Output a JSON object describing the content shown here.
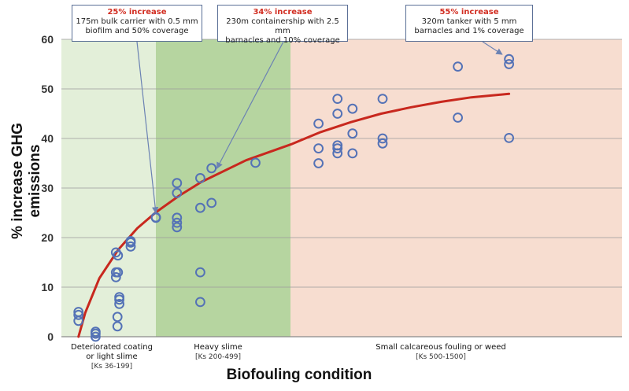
{
  "chart_data": {
    "type": "scatter",
    "title": "",
    "xlabel": "Biofouling condition",
    "ylabel": "% increase GHG emissions",
    "ylim": [
      0,
      60
    ],
    "yticks": [
      0,
      10,
      20,
      30,
      40,
      50,
      60
    ],
    "grid": true,
    "colors": {
      "marker": "#5472b6",
      "trend": "#c8281e",
      "band_light": "#e3efd9",
      "band_medium": "#b6d5a0",
      "band_orange": "#f7ddd0",
      "annotation_title": "#d22d21",
      "arrow": "#6b82b3"
    },
    "categories": [
      {
        "label_line1": "Deteriorated coating",
        "label_line2": "or light slime",
        "range": "[Ks 36-199]"
      },
      {
        "label_line1": "Heavy slime",
        "label_line2": "",
        "range": "[Ks 200-499]"
      },
      {
        "label_line1": "Small calcareous fouling or weed",
        "label_line2": "",
        "range": "[Ks 500-1500]"
      }
    ],
    "x_domain": [
      0,
      1600
    ],
    "bands": [
      {
        "from": 0,
        "to": 199,
        "fill": "band_light"
      },
      {
        "from": 199,
        "to": 499,
        "fill": "band_medium"
      },
      {
        "from": 499,
        "to": 1600,
        "fill": "band_orange"
      }
    ],
    "series": [
      {
        "name": "observations",
        "points": [
          [
            36,
            5.0
          ],
          [
            36,
            4.4
          ],
          [
            36,
            3.2
          ],
          [
            72,
            1.0
          ],
          [
            72,
            0.6
          ],
          [
            72,
            0.0
          ],
          [
            115,
            17.0
          ],
          [
            115,
            13.0
          ],
          [
            115,
            12.0
          ],
          [
            119,
            16.4
          ],
          [
            119,
            13.0
          ],
          [
            122,
            8.0
          ],
          [
            122,
            7.5
          ],
          [
            122,
            6.6
          ],
          [
            118,
            4.0
          ],
          [
            118,
            2.1
          ],
          [
            146,
            19.3
          ],
          [
            146,
            19.0
          ],
          [
            146,
            18.2
          ],
          [
            199,
            24.1
          ],
          [
            199,
            24.0
          ],
          [
            246,
            31.0
          ],
          [
            246,
            29.0
          ],
          [
            246,
            24.0
          ],
          [
            246,
            23.0
          ],
          [
            246,
            22.1
          ],
          [
            298,
            32.0
          ],
          [
            298,
            26.0
          ],
          [
            298,
            13.0
          ],
          [
            298,
            7.0
          ],
          [
            323,
            34.0
          ],
          [
            323,
            27.0
          ],
          [
            421,
            35.1
          ],
          [
            592,
            43.0
          ],
          [
            592,
            38.0
          ],
          [
            592,
            35.0
          ],
          [
            655,
            48.0
          ],
          [
            655,
            45.0
          ],
          [
            655,
            38.6
          ],
          [
            655,
            38.0
          ],
          [
            655,
            37.0
          ],
          [
            705,
            46.0
          ],
          [
            705,
            41.0
          ],
          [
            705,
            37.0
          ],
          [
            805,
            48.0
          ],
          [
            805,
            40.0
          ],
          [
            805,
            39.0
          ],
          [
            1055,
            54.5
          ],
          [
            1055,
            44.2
          ],
          [
            1225,
            56.0
          ],
          [
            1225,
            55.0
          ],
          [
            1225,
            40.1
          ]
        ]
      }
    ],
    "trend": {
      "name": "fitted curve",
      "x": [
        36,
        50,
        80,
        120,
        160,
        199,
        250,
        300,
        400,
        500,
        600,
        700,
        800,
        900,
        1000,
        1100,
        1225
      ],
      "y": [
        0,
        4.8,
        11.8,
        17.6,
        21.9,
        25.1,
        28.4,
        31.2,
        35.6,
        38.8,
        41.3,
        43.3,
        45.0,
        46.3,
        47.4,
        48.3,
        49.0
      ]
    },
    "annotations": [
      {
        "title": "25% increase",
        "line1": "175m bulk carrier with 0.5 mm",
        "line2": "biofilm and 50% coverage"
      },
      {
        "title": "34% increase",
        "line1": "230m containership with 2.5 mm",
        "line2": "barnacles and 10% coverage"
      },
      {
        "title": "55% increase",
        "line1": "320m tanker with 5 mm",
        "line2": "barnacles and 1% coverage"
      }
    ]
  }
}
